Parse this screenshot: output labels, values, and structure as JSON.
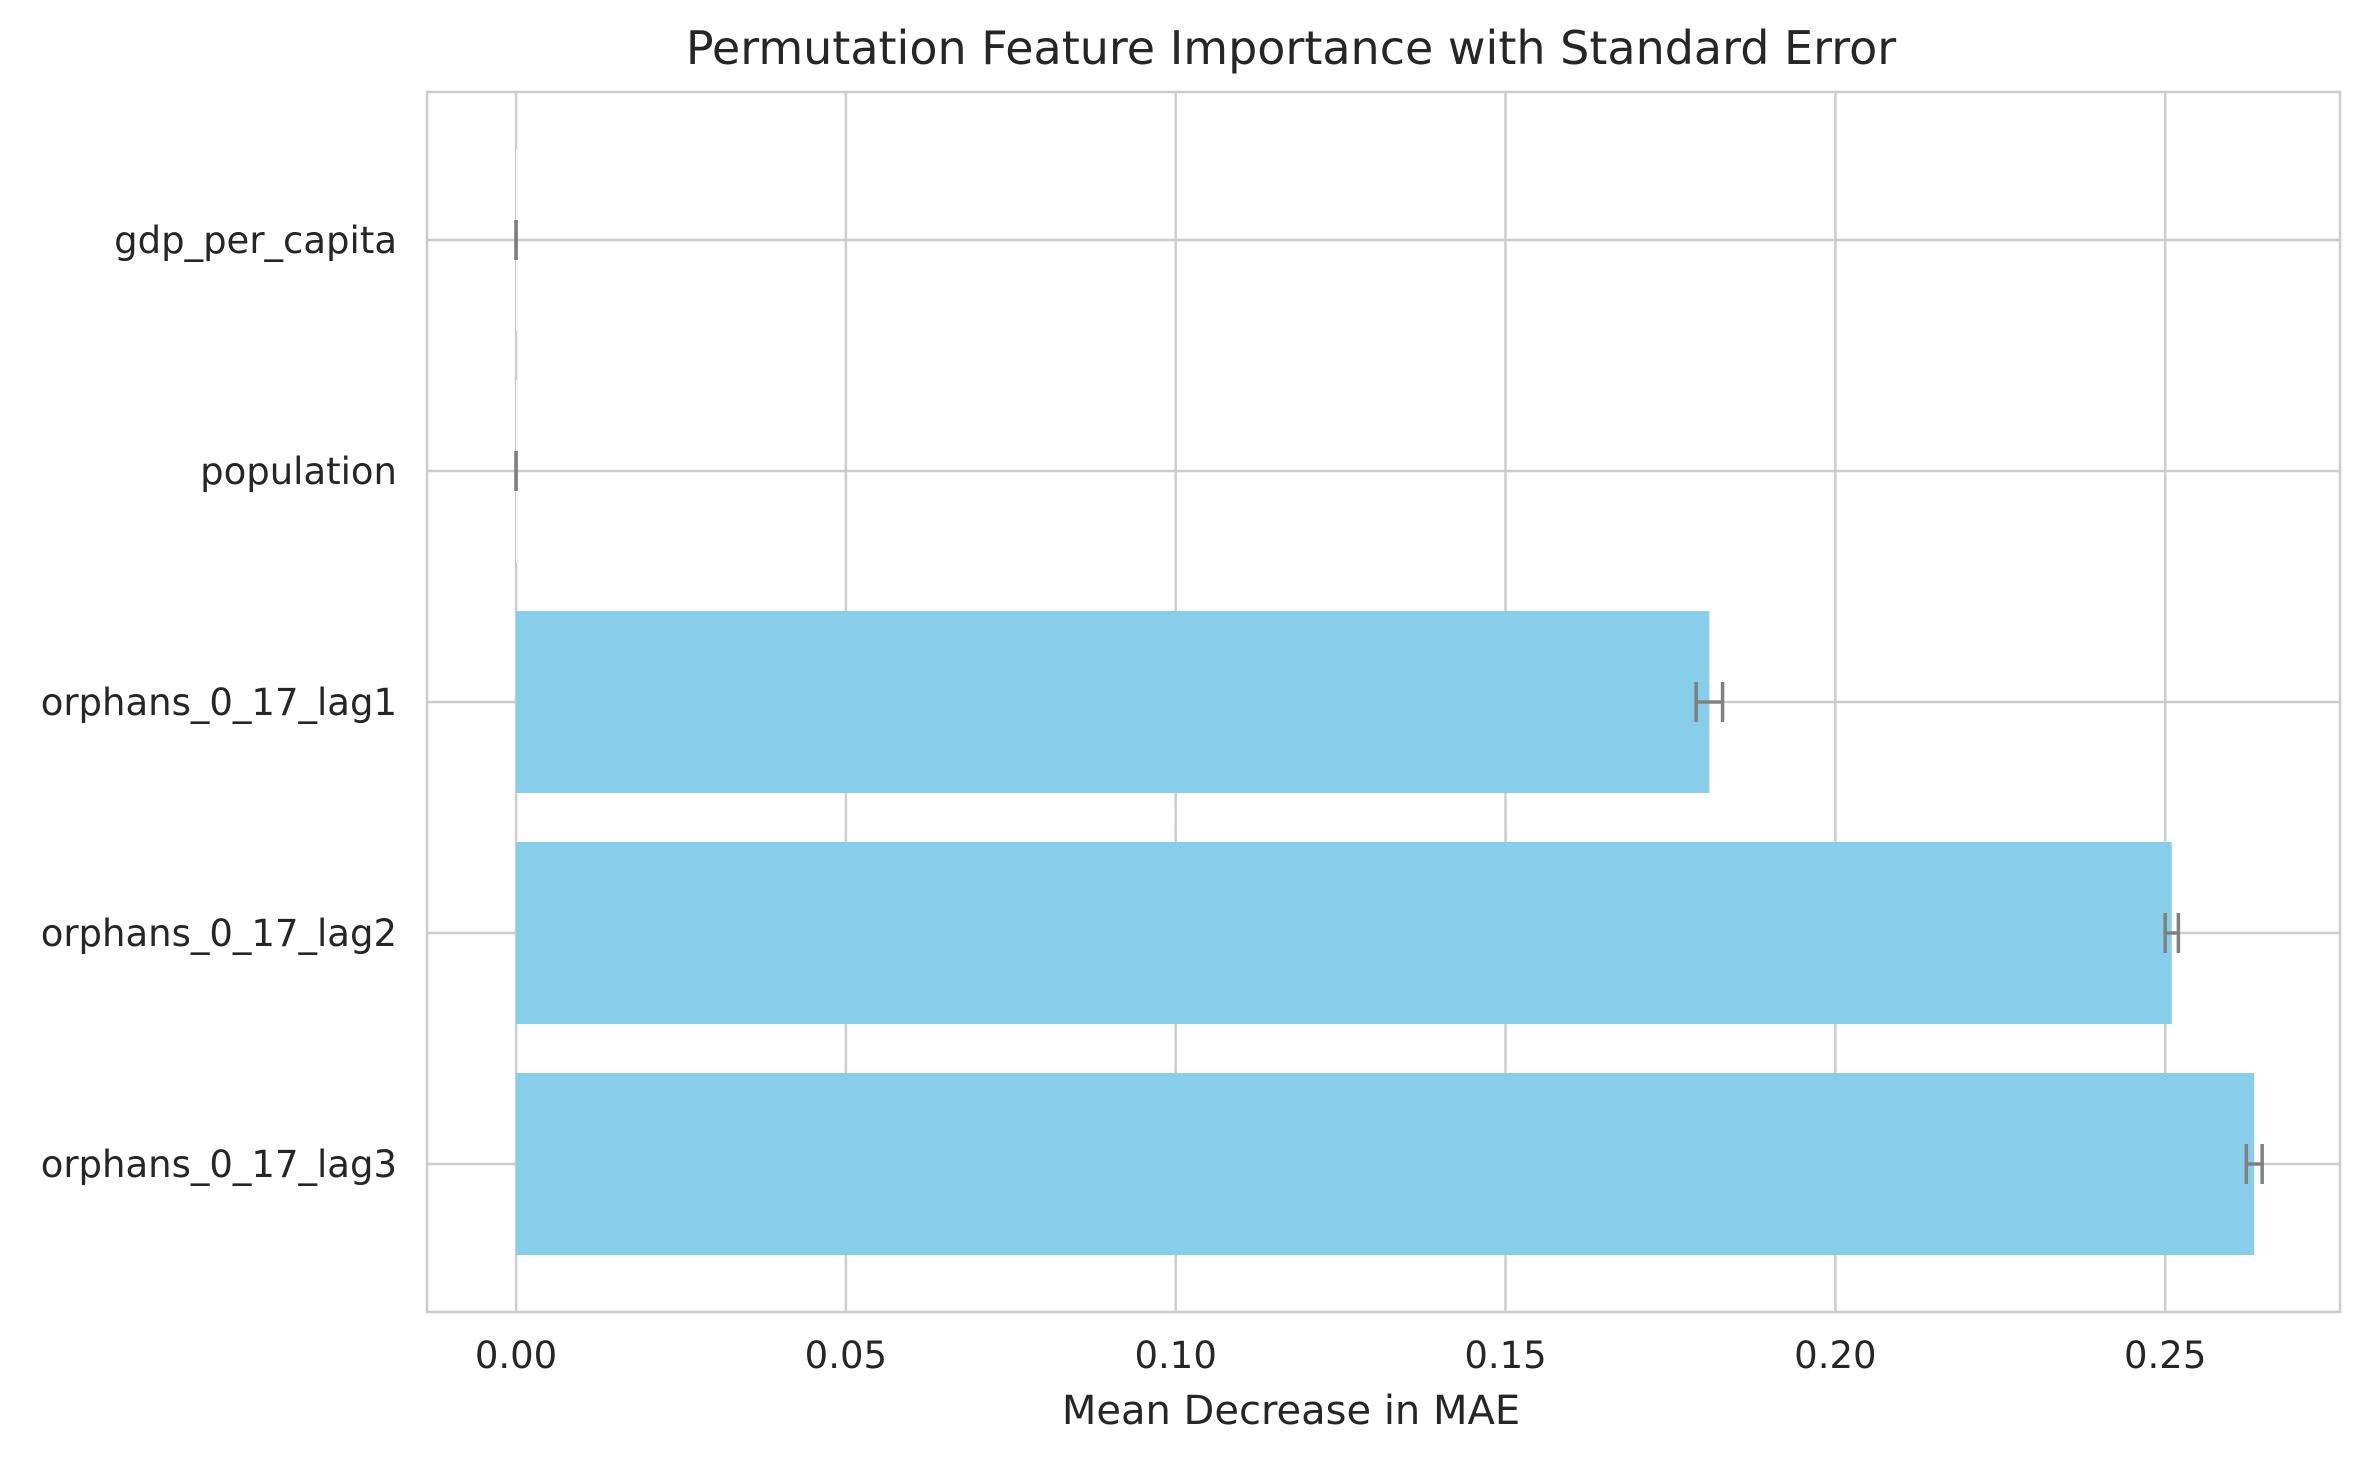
{
  "chart_data": {
    "type": "bar",
    "orientation": "horizontal",
    "title": "Permutation Feature Importance with Standard Error",
    "xlabel": "Mean Decrease in MAE",
    "ylabel": "",
    "categories": [
      "orphans_0_17_lag3",
      "orphans_0_17_lag2",
      "orphans_0_17_lag1",
      "population",
      "gdp_per_capita"
    ],
    "values": [
      0.2635,
      0.251,
      0.1809,
      0.0,
      0.0
    ],
    "errors": [
      0.0012,
      0.001,
      0.002,
      0.0,
      0.0
    ],
    "xlim": [
      -0.0135,
      0.2765
    ],
    "xticks": [
      0.0,
      0.05,
      0.1,
      0.15,
      0.2,
      0.25
    ],
    "xtick_labels": [
      "0.00",
      "0.05",
      "0.10",
      "0.15",
      "0.20",
      "0.25"
    ],
    "grid": true,
    "colors": {
      "bar": "#87CEEB",
      "error": "#808080",
      "grid": "#cccccc",
      "spine": "#cccccc",
      "text": "#262626"
    }
  }
}
